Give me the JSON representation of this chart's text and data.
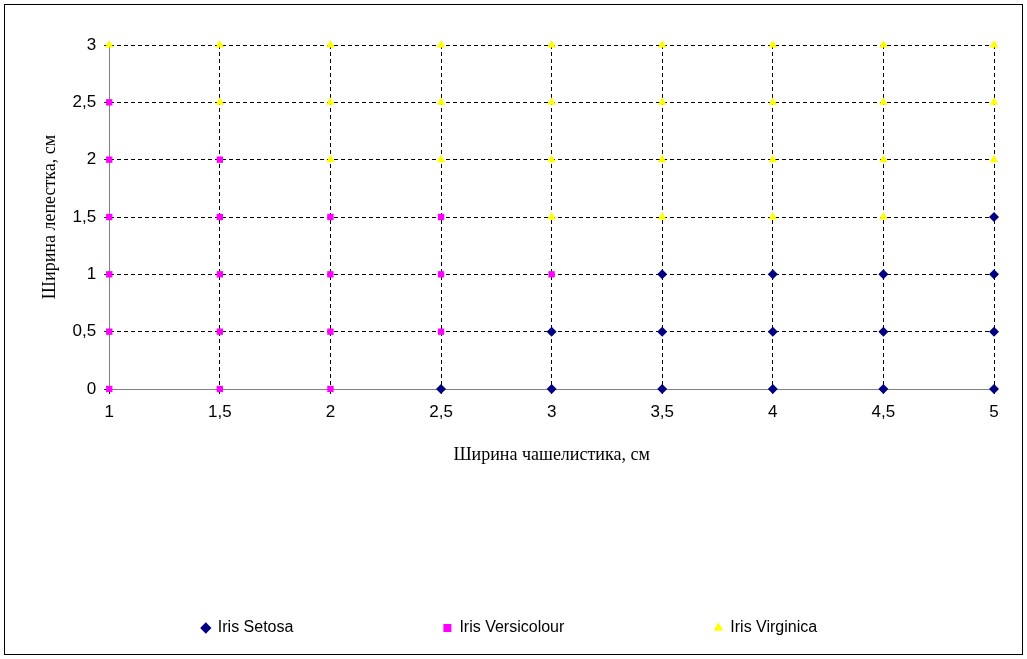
{
  "chart_data": {
    "type": "scatter",
    "xlabel": "Ширина чашелистика, см",
    "ylabel": "Ширина лепестка, см",
    "xlim": [
      1,
      5
    ],
    "ylim": [
      0,
      3
    ],
    "xticks": [
      1,
      {
        "value": 1.5,
        "label": "1,5"
      },
      2,
      {
        "value": 2.5,
        "label": "2,5"
      },
      3,
      {
        "value": 3.5,
        "label": "3,5"
      },
      4,
      {
        "value": 4.5,
        "label": "4,5"
      },
      5
    ],
    "yticks": [
      0,
      {
        "value": 0.5,
        "label": "0,5"
      },
      1,
      {
        "value": 1.5,
        "label": "1,5"
      },
      2,
      {
        "value": 2.5,
        "label": "2,5"
      },
      3
    ],
    "grid": true,
    "line_style": "dashed",
    "legend": "bottom",
    "series": [
      {
        "name": "Iris Setosa",
        "color": "#000080",
        "marker": "diamond",
        "x": [
          2.5,
          3,
          3.5,
          4,
          4.5,
          5,
          3,
          3.5,
          4,
          4.5,
          5,
          3.5,
          4,
          4.5,
          5,
          5
        ],
        "values": [
          0,
          0,
          0,
          0,
          0,
          0,
          0.5,
          0.5,
          0.5,
          0.5,
          0.5,
          1,
          1,
          1,
          1,
          1.5
        ]
      },
      {
        "name": "Iris Versicolour",
        "color": "#ff00ff",
        "marker": "square",
        "x": [
          1,
          1.5,
          2,
          1,
          1.5,
          2,
          2.5,
          1,
          1.5,
          2,
          2.5,
          3,
          1,
          1.5,
          2,
          2.5,
          1,
          1.5,
          1
        ],
        "values": [
          0,
          0,
          0,
          0.5,
          0.5,
          0.5,
          0.5,
          1,
          1,
          1,
          1,
          1,
          1.5,
          1.5,
          1.5,
          1.5,
          2,
          2,
          2.5
        ]
      },
      {
        "name": "Iris Virginica",
        "color": "#ffff00",
        "marker": "triangle",
        "x": [
          1,
          1.5,
          2,
          2.5,
          3,
          3.5,
          4,
          4.5,
          5,
          1.5,
          2,
          2.5,
          3,
          3.5,
          4,
          4.5,
          5,
          2,
          2.5,
          3,
          3.5,
          4,
          4.5,
          5,
          3,
          3.5,
          4,
          4.5
        ],
        "values": [
          3,
          3,
          3,
          3,
          3,
          3,
          3,
          3,
          3,
          2.5,
          2.5,
          2.5,
          2.5,
          2.5,
          2.5,
          2.5,
          2.5,
          2,
          2,
          2,
          2,
          2,
          2,
          2,
          1.5,
          1.5,
          1.5,
          1.5
        ]
      }
    ]
  }
}
